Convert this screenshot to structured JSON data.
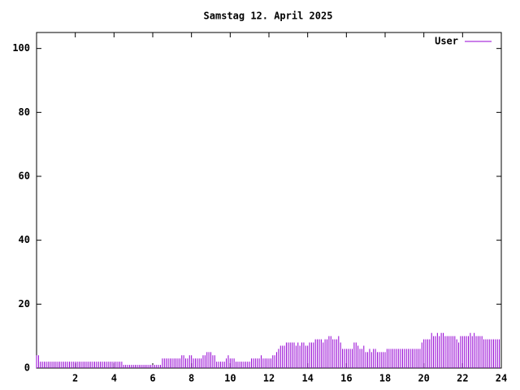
{
  "chart_data": {
    "type": "impulses",
    "title": "Samstag 12. April 2025",
    "x": [
      0,
      0.1,
      0.2,
      0.3,
      0.4,
      0.5,
      0.6,
      0.7,
      0.8,
      0.9,
      1,
      1.1,
      1.2,
      1.3,
      1.4,
      1.5,
      1.6,
      1.7,
      1.8,
      1.9,
      2,
      2.1,
      2.2,
      2.3,
      2.4,
      2.5,
      2.6,
      2.7,
      2.8,
      2.9,
      3,
      3.1,
      3.2,
      3.3,
      3.4,
      3.5,
      3.6,
      3.7,
      3.8,
      3.9,
      4,
      4.1,
      4.2,
      4.3,
      4.4,
      4.5,
      4.6,
      4.7,
      4.8,
      4.9,
      5,
      5.1,
      5.2,
      5.3,
      5.4,
      5.5,
      5.6,
      5.7,
      5.8,
      5.9,
      6,
      6.1,
      6.2,
      6.3,
      6.4,
      6.5,
      6.6,
      6.7,
      6.8,
      6.9,
      7,
      7.1,
      7.2,
      7.3,
      7.4,
      7.5,
      7.6,
      7.7,
      7.8,
      7.9,
      8,
      8.1,
      8.2,
      8.3,
      8.4,
      8.5,
      8.6,
      8.7,
      8.8,
      8.9,
      9,
      9.1,
      9.2,
      9.3,
      9.4,
      9.5,
      9.6,
      9.7,
      9.8,
      9.9,
      10,
      10.1,
      10.2,
      10.3,
      10.4,
      10.5,
      10.6,
      10.7,
      10.8,
      10.9,
      11,
      11.1,
      11.2,
      11.3,
      11.4,
      11.5,
      11.6,
      11.7,
      11.8,
      11.9,
      12,
      12.1,
      12.2,
      12.3,
      12.4,
      12.5,
      12.6,
      12.7,
      12.8,
      12.9,
      13,
      13.1,
      13.2,
      13.3,
      13.4,
      13.5,
      13.6,
      13.7,
      13.8,
      13.9,
      14,
      14.1,
      14.2,
      14.3,
      14.4,
      14.5,
      14.6,
      14.7,
      14.8,
      14.9,
      15,
      15.1,
      15.2,
      15.3,
      15.4,
      15.5,
      15.6,
      15.7,
      15.8,
      15.9,
      16,
      16.1,
      16.2,
      16.3,
      16.4,
      16.5,
      16.6,
      16.7,
      16.8,
      16.9,
      17,
      17.1,
      17.2,
      17.3,
      17.4,
      17.5,
      17.6,
      17.7,
      17.8,
      17.9,
      18,
      18.1,
      18.2,
      18.3,
      18.4,
      18.5,
      18.6,
      18.7,
      18.8,
      18.9,
      19,
      19.1,
      19.2,
      19.3,
      19.4,
      19.5,
      19.6,
      19.7,
      19.8,
      19.9,
      20,
      20.1,
      20.2,
      20.3,
      20.4,
      20.5,
      20.6,
      20.7,
      20.8,
      20.9,
      21,
      21.1,
      21.2,
      21.3,
      21.4,
      21.5,
      21.6,
      21.7,
      21.8,
      21.9,
      22,
      22.1,
      22.2,
      22.3,
      22.4,
      22.5,
      22.6,
      22.7,
      22.8,
      22.9,
      23,
      23.1,
      23.2,
      23.3,
      23.4,
      23.5,
      23.6,
      23.7,
      23.8,
      23.9
    ],
    "series": [
      {
        "name": "User",
        "color": "#9400d3",
        "values": [
          4,
          4,
          2,
          2,
          2,
          2,
          2,
          2,
          2,
          2,
          2,
          2,
          2,
          2,
          2,
          2,
          2,
          2,
          2,
          2,
          2,
          2,
          2,
          2,
          2,
          2,
          2,
          2,
          2,
          2,
          2,
          2,
          2,
          2,
          2,
          2,
          2,
          2,
          2,
          2,
          2,
          2,
          2,
          2,
          2,
          1,
          1,
          1,
          1,
          1,
          1,
          1,
          1,
          1,
          1,
          1,
          1,
          1,
          1,
          1,
          1,
          1,
          1,
          1,
          1,
          3,
          3,
          3,
          3,
          3,
          3,
          3,
          3,
          3,
          3,
          4,
          4,
          3,
          3,
          4,
          4,
          3,
          3,
          3,
          3,
          3,
          4,
          4,
          5,
          5,
          5,
          4,
          4,
          2,
          2,
          2,
          2,
          2,
          3,
          4,
          3,
          3,
          3,
          2,
          2,
          2,
          2,
          2,
          2,
          2,
          2,
          3,
          3,
          3,
          3,
          3,
          4,
          3,
          3,
          3,
          3,
          3,
          4,
          4,
          5,
          6,
          7,
          7,
          7,
          8,
          8,
          8,
          8,
          8,
          7,
          8,
          7,
          8,
          8,
          7,
          7,
          8,
          8,
          8,
          9,
          9,
          9,
          9,
          8,
          9,
          9,
          10,
          10,
          9,
          9,
          9,
          10,
          8,
          6,
          6,
          6,
          6,
          6,
          6,
          8,
          8,
          7,
          6,
          6,
          7,
          5,
          5,
          6,
          5,
          6,
          6,
          5,
          5,
          5,
          5,
          5,
          6,
          6,
          6,
          6,
          6,
          6,
          6,
          6,
          6,
          6,
          6,
          6,
          6,
          6,
          6,
          6,
          6,
          6,
          8,
          9,
          9,
          9,
          9,
          11,
          10,
          10,
          11,
          10,
          11,
          11,
          10,
          10,
          10,
          10,
          10,
          10,
          9,
          8,
          10,
          10,
          10,
          10,
          10,
          11,
          10,
          11,
          10,
          10,
          10,
          10,
          9,
          9,
          9,
          9,
          9,
          9,
          9,
          9,
          9
        ]
      }
    ],
    "xlim": [
      0,
      24
    ],
    "xticks": [
      2,
      4,
      6,
      8,
      10,
      12,
      14,
      16,
      18,
      20,
      22,
      24
    ],
    "ylim": [
      0,
      105
    ],
    "yticks": [
      0,
      20,
      40,
      60,
      80,
      100
    ],
    "legend": "top-right"
  }
}
